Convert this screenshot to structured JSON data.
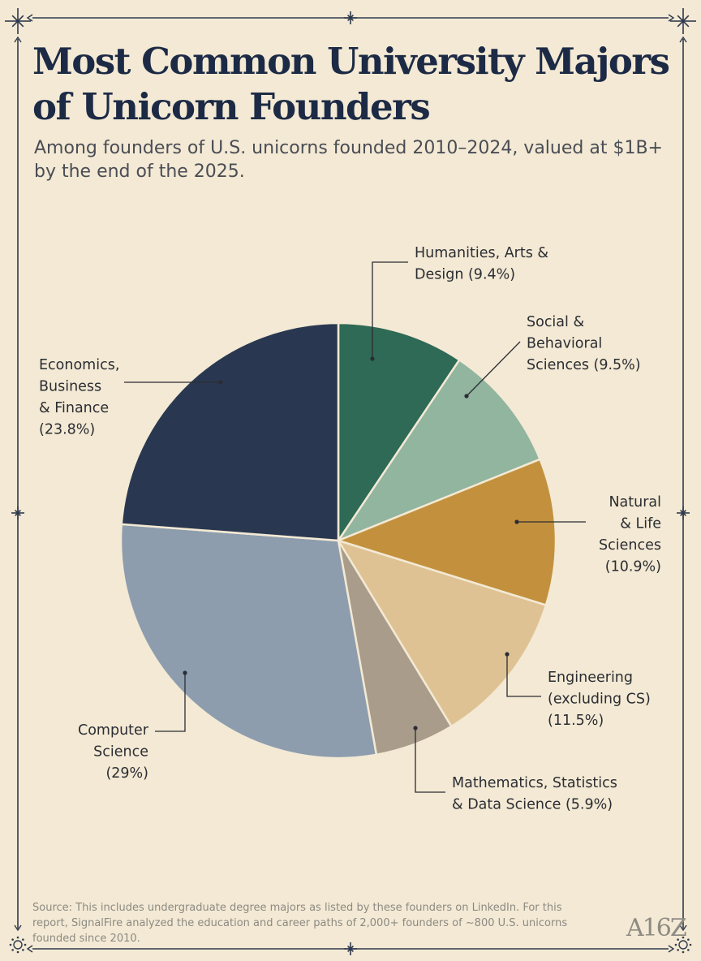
{
  "header": {
    "title": "Most Common University Majors of Unicorn Founders",
    "subtitle": "Among founders of U.S. unicorns founded 2010–2024, valued at $1B+ by the end of the 2025."
  },
  "footer": {
    "source": "Source: This includes undergraduate degree majors as listed by these founders on LinkedIn. For this report, SignalFire analyzed the education and career paths of 2,000+ founders of ~800 U.S. unicorns founded since 2010.",
    "logo": "A16Z"
  },
  "colors": {
    "background": "#f3e9d4",
    "border": "#2f3a4d",
    "title": "#1c2a45"
  },
  "chart_data": {
    "type": "pie",
    "start_angle_deg": 0,
    "direction": "clockwise",
    "slices": [
      {
        "label_lines": [
          "Humanities, Arts &",
          "Design (9.4%)"
        ],
        "value": 9.4,
        "color": "#2e6a55"
      },
      {
        "label_lines": [
          "Social &",
          "Behavioral",
          "Sciences (9.5%)"
        ],
        "value": 9.5,
        "color": "#91b59f"
      },
      {
        "label_lines": [
          "Natural",
          "& Life",
          "Sciences",
          "(10.9%)"
        ],
        "value": 10.9,
        "color": "#c3913e"
      },
      {
        "label_lines": [
          "Engineering",
          "(excluding CS)",
          "(11.5%)"
        ],
        "value": 11.5,
        "color": "#dfc294"
      },
      {
        "label_lines": [
          "Mathematics, Statistics",
          "& Data Science (5.9%)"
        ],
        "value": 5.9,
        "color": "#a99c8a"
      },
      {
        "label_lines": [
          "Computer",
          "Science",
          "(29%)"
        ],
        "value": 29,
        "color": "#8d9dae"
      },
      {
        "label_lines": [
          "Economics,",
          "Business",
          "& Finance",
          "(23.8%)"
        ],
        "value": 23.8,
        "color": "#293850"
      }
    ]
  }
}
